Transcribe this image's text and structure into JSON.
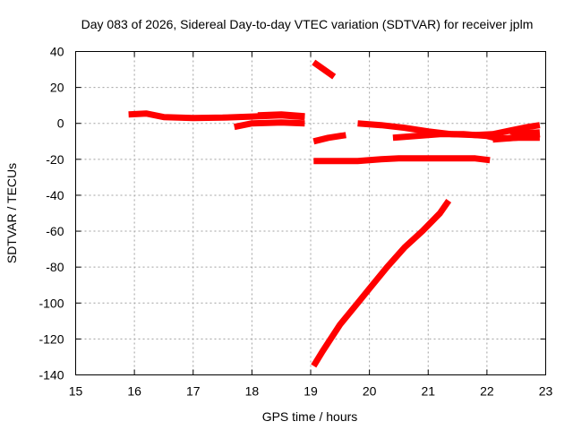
{
  "chart_data": {
    "type": "line",
    "title": "Day 083 of 2026, Sidereal Day-to-day VTEC variation (SDTVAR) for receiver jplm",
    "xlabel": "GPS time / hours",
    "ylabel": "SDTVAR / TECUs",
    "xlim": [
      15,
      23
    ],
    "ylim": [
      -140,
      40
    ],
    "x_ticks": [
      15,
      16,
      17,
      18,
      19,
      20,
      21,
      22,
      23
    ],
    "y_ticks": [
      40,
      20,
      0,
      -20,
      -40,
      -60,
      -80,
      -100,
      -120,
      -140
    ],
    "x_tick_labels": [
      "15",
      "16",
      "17",
      "18",
      "19",
      "20",
      "21",
      "22",
      "23"
    ],
    "y_tick_labels": [
      "40",
      "20",
      "0",
      "-20",
      "-40",
      "-60",
      "-80",
      "-100",
      "-120",
      "-140"
    ],
    "grid": true,
    "legend": "none",
    "series_color": "#ff0000",
    "series": [
      {
        "points": [
          [
            15.9,
            5
          ],
          [
            16.2,
            5.5
          ],
          [
            16.5,
            3.5
          ],
          [
            17.0,
            3
          ],
          [
            17.5,
            3.2
          ],
          [
            18.0,
            3.8
          ],
          [
            18.5,
            4.5
          ],
          [
            18.9,
            3.5
          ]
        ]
      },
      {
        "points": [
          [
            17.7,
            -2
          ],
          [
            18.0,
            0
          ],
          [
            18.5,
            0.5
          ],
          [
            18.9,
            0
          ]
        ]
      },
      {
        "points": [
          [
            18.1,
            4.5
          ],
          [
            18.5,
            5
          ],
          [
            18.9,
            4
          ]
        ]
      },
      {
        "points": [
          [
            19.05,
            34
          ],
          [
            19.4,
            26
          ]
        ]
      },
      {
        "points": [
          [
            19.05,
            -10
          ],
          [
            19.3,
            -8
          ],
          [
            19.6,
            -6.5
          ]
        ]
      },
      {
        "points": [
          [
            19.05,
            -21
          ],
          [
            19.5,
            -21
          ],
          [
            19.8,
            -21
          ],
          [
            20.2,
            -20
          ],
          [
            20.5,
            -19.5
          ],
          [
            21.0,
            -19.5
          ],
          [
            21.5,
            -19.5
          ],
          [
            21.8,
            -19.5
          ],
          [
            22.05,
            -20.5
          ]
        ]
      },
      {
        "points": [
          [
            19.8,
            0
          ],
          [
            20.2,
            -1
          ],
          [
            20.6,
            -2.5
          ],
          [
            21.0,
            -4.5
          ],
          [
            21.4,
            -6
          ],
          [
            21.8,
            -6.5
          ],
          [
            22.1,
            -6
          ],
          [
            22.4,
            -4
          ],
          [
            22.7,
            -2
          ],
          [
            22.9,
            -1
          ]
        ]
      },
      {
        "points": [
          [
            20.4,
            -8
          ],
          [
            20.8,
            -7
          ],
          [
            21.2,
            -6
          ],
          [
            21.6,
            -6
          ],
          [
            22.0,
            -7
          ],
          [
            22.2,
            -8.5
          ],
          [
            22.5,
            -8
          ],
          [
            22.9,
            -6
          ]
        ]
      },
      {
        "points": [
          [
            22.4,
            -4.5
          ],
          [
            22.6,
            -5.5
          ],
          [
            22.9,
            -5
          ]
        ]
      },
      {
        "points": [
          [
            22.1,
            -9
          ],
          [
            22.5,
            -8
          ],
          [
            22.9,
            -8
          ]
        ]
      },
      {
        "points": [
          [
            19.05,
            -135
          ],
          [
            19.2,
            -127
          ],
          [
            19.5,
            -112
          ],
          [
            19.8,
            -100
          ],
          [
            20.0,
            -92
          ],
          [
            20.3,
            -80
          ],
          [
            20.6,
            -69
          ],
          [
            20.9,
            -60
          ],
          [
            21.2,
            -50
          ],
          [
            21.35,
            -43
          ]
        ]
      }
    ]
  }
}
